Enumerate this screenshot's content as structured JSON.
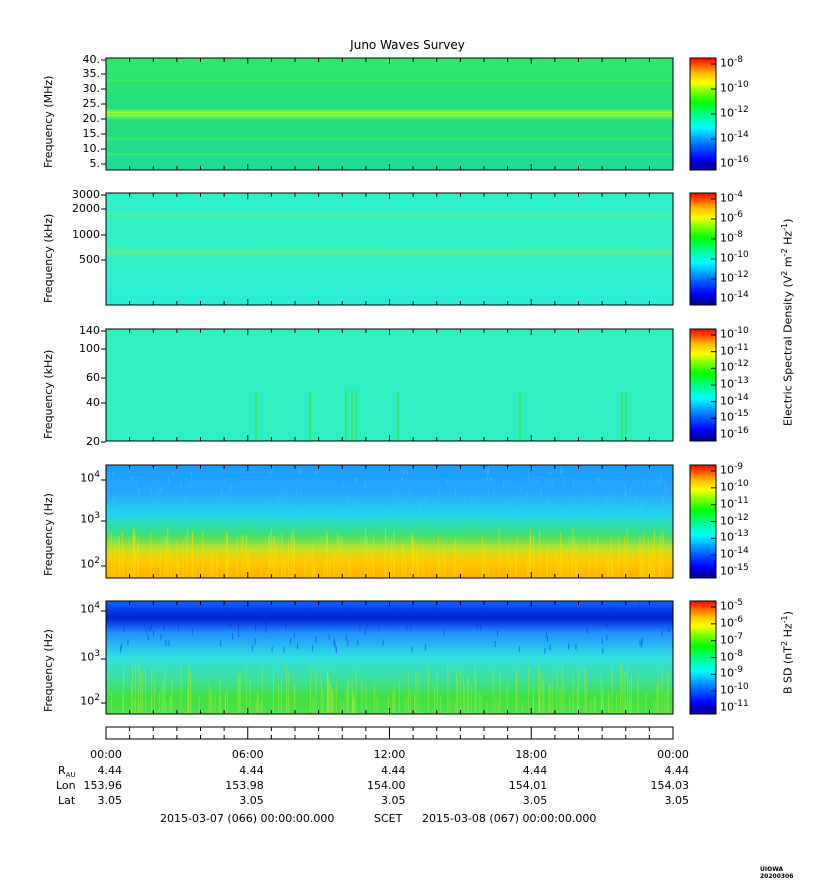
{
  "title": "Juno Waves Survey",
  "colors": {
    "jet": [
      "#00008b",
      "#0000ff",
      "#0080ff",
      "#00ffff",
      "#00ff80",
      "#00ff00",
      "#80ff00",
      "#ffff00",
      "#ffc000",
      "#ff8000",
      "#ff0000"
    ]
  },
  "chart_data": [
    {
      "type": "heatmap",
      "ylabel": "Frequency (MHz)",
      "yticks": [
        "40.",
        "35.",
        "30.",
        "25.",
        "20.",
        "15.",
        "10.",
        "5."
      ],
      "colorbar_ticks": [
        {
          "b": "10",
          "e": "-8"
        },
        {
          "b": "10",
          "e": "-10"
        },
        {
          "b": "10",
          "e": "-12"
        },
        {
          "b": "10",
          "e": "-14"
        },
        {
          "b": "10",
          "e": "-16"
        }
      ],
      "colorbar_range": [
        -17,
        -7
      ],
      "background_level": "-13 (green-cyan)"
    },
    {
      "type": "heatmap",
      "ylabel": "Frequency (kHz)",
      "yticks": [
        "3000",
        "2000",
        "1000",
        "500"
      ],
      "colorbar_ticks": [
        {
          "b": "10",
          "e": "-4"
        },
        {
          "b": "10",
          "e": "-6"
        },
        {
          "b": "10",
          "e": "-8"
        },
        {
          "b": "10",
          "e": "-10"
        },
        {
          "b": "10",
          "e": "-12"
        },
        {
          "b": "10",
          "e": "-14"
        }
      ],
      "colorbar_range": [
        -14,
        -3.5
      ],
      "background_level": "-11 (cyan)"
    },
    {
      "type": "heatmap",
      "ylabel": "Frequency (kHz)",
      "yticks": [
        "140",
        "100",
        "60",
        "40",
        "20"
      ],
      "colorbar_ticks": [
        {
          "b": "10",
          "e": "-10"
        },
        {
          "b": "10",
          "e": "-11"
        },
        {
          "b": "10",
          "e": "-12"
        },
        {
          "b": "10",
          "e": "-13"
        },
        {
          "b": "10",
          "e": "-14"
        },
        {
          "b": "10",
          "e": "-15"
        },
        {
          "b": "10",
          "e": "-16"
        }
      ],
      "colorbar_range": [
        -16,
        -10
      ],
      "colorbar_label_parts": {
        "main": "Electric Spectral Density (V",
        "e1": "2",
        "mid": " m",
        "e2": "-2",
        "mid2": " Hz",
        "e3": "-1",
        "end": ")"
      },
      "background_level": "-14 (cyan)"
    },
    {
      "type": "heatmap",
      "ylabel": "Frequency (Hz)",
      "yticks": [
        {
          "b": "10",
          "e": "4"
        },
        {
          "b": "10",
          "e": "3"
        },
        {
          "b": "10",
          "e": "2"
        }
      ],
      "colorbar_ticks": [
        {
          "b": "10",
          "e": "-9"
        },
        {
          "b": "10",
          "e": "-10"
        },
        {
          "b": "10",
          "e": "-11"
        },
        {
          "b": "10",
          "e": "-12"
        },
        {
          "b": "10",
          "e": "-13"
        },
        {
          "b": "10",
          "e": "-14"
        },
        {
          "b": "10",
          "e": "-15"
        }
      ],
      "colorbar_range": [
        -15,
        -9
      ],
      "background_level": "low freq yellow, high freq blue"
    },
    {
      "type": "heatmap",
      "ylabel": "Frequency (Hz)",
      "yticks": [
        {
          "b": "10",
          "e": "4"
        },
        {
          "b": "10",
          "e": "3"
        },
        {
          "b": "10",
          "e": "2"
        }
      ],
      "colorbar_ticks": [
        {
          "b": "10",
          "e": "-5"
        },
        {
          "b": "10",
          "e": "-6"
        },
        {
          "b": "10",
          "e": "-7"
        },
        {
          "b": "10",
          "e": "-8"
        },
        {
          "b": "10",
          "e": "-9"
        },
        {
          "b": "10",
          "e": "-10"
        },
        {
          "b": "10",
          "e": "-11"
        }
      ],
      "colorbar_range": [
        -11,
        -4.5
      ],
      "colorbar_label_parts": {
        "main": "B SD (nT",
        "e1": "2",
        "mid": " Hz",
        "e2": "-1",
        "end": ")"
      },
      "background_level": "top blue, bottom green"
    }
  ],
  "time_axis": {
    "labels": [
      "00:00",
      "06:00",
      "12:00",
      "18:00",
      "00:00"
    ],
    "rau_label": "R",
    "rau_sub": "AU",
    "lon_label": "Lon",
    "lat_label": "Lat",
    "rau": [
      "4.44",
      "4.44",
      "4.44",
      "4.44",
      "4.44"
    ],
    "lon": [
      "153.96",
      "153.98",
      "154.00",
      "154.01",
      "154.03"
    ],
    "lat": [
      "3.05",
      "3.05",
      "3.05",
      "3.05",
      "3.05"
    ]
  },
  "footer": {
    "start": "2015-03-07 (066) 00:00:00.000",
    "scet": "SCET",
    "end": "2015-03-08 (067) 00:00:00.000"
  },
  "stamp": "UIOWA 20200306"
}
